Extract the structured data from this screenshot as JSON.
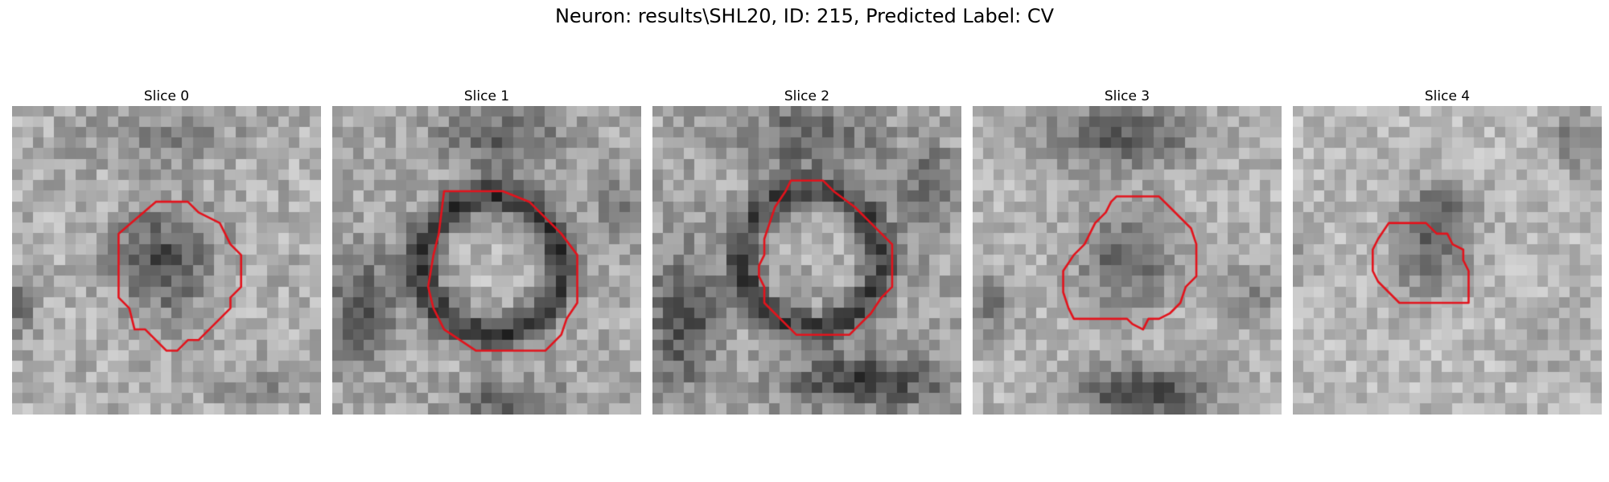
{
  "figure": {
    "title": "Neuron: results\\SHL20, ID: 215, Predicted Label: CV"
  },
  "slices": [
    {
      "label": "Slice 0"
    },
    {
      "label": "Slice 1"
    },
    {
      "label": "Slice 2"
    },
    {
      "label": "Slice 3"
    },
    {
      "label": "Slice 4"
    }
  ],
  "colors": {
    "contour": "#e3131c",
    "background": "#ffffff",
    "text": "#000000"
  }
}
